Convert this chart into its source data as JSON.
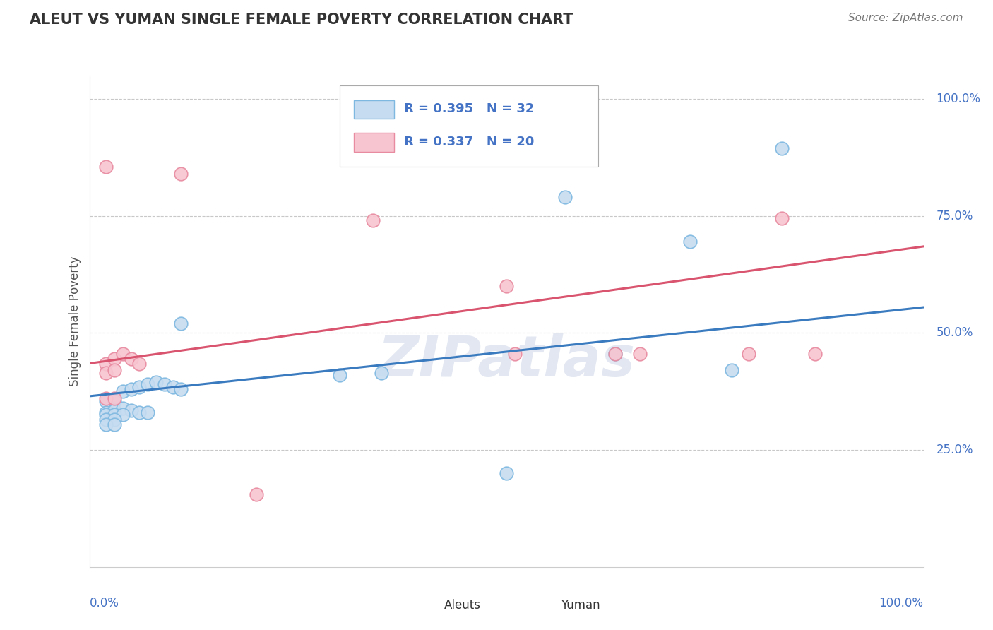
{
  "title": "ALEUT VS YUMAN SINGLE FEMALE POVERTY CORRELATION CHART",
  "source": "Source: ZipAtlas.com",
  "ylabel": "Single Female Poverty",
  "aleuts_R": 0.395,
  "aleuts_N": 32,
  "yuman_R": 0.337,
  "yuman_N": 20,
  "blue_face": "#c6dcf0",
  "blue_edge": "#7eb8e0",
  "pink_face": "#f7c5d0",
  "pink_edge": "#e88aa0",
  "blue_line": "#3a7abf",
  "pink_line": "#d9546e",
  "grid_color": "#c8c8c8",
  "text_color": "#555555",
  "axis_label_color": "#4472C4",
  "watermark_color": "#d0d8e8",
  "aleuts_x": [
    0.02,
    0.03,
    0.04,
    0.05,
    0.06,
    0.07,
    0.08,
    0.09,
    0.1,
    0.11,
    0.02,
    0.03,
    0.04,
    0.05,
    0.06,
    0.07,
    0.02,
    0.03,
    0.04,
    0.02,
    0.03,
    0.02,
    0.03,
    0.11,
    0.3,
    0.35,
    0.5,
    0.57,
    0.63,
    0.72,
    0.77,
    0.83
  ],
  "aleuts_y": [
    0.355,
    0.355,
    0.375,
    0.38,
    0.385,
    0.39,
    0.395,
    0.39,
    0.385,
    0.38,
    0.33,
    0.335,
    0.34,
    0.335,
    0.33,
    0.33,
    0.325,
    0.325,
    0.325,
    0.315,
    0.315,
    0.305,
    0.305,
    0.52,
    0.41,
    0.415,
    0.2,
    0.79,
    0.455,
    0.695,
    0.42,
    0.895
  ],
  "yuman_x": [
    0.02,
    0.03,
    0.04,
    0.05,
    0.06,
    0.02,
    0.03,
    0.02,
    0.03,
    0.02,
    0.11,
    0.2,
    0.34,
    0.5,
    0.51,
    0.63,
    0.66,
    0.79,
    0.83,
    0.87
  ],
  "yuman_y": [
    0.435,
    0.445,
    0.455,
    0.445,
    0.435,
    0.415,
    0.42,
    0.36,
    0.36,
    0.855,
    0.84,
    0.155,
    0.74,
    0.6,
    0.455,
    0.455,
    0.455,
    0.455,
    0.745,
    0.455
  ],
  "aleuts_line": [
    [
      0.0,
      1.0
    ],
    [
      0.365,
      0.555
    ]
  ],
  "yuman_line": [
    [
      0.0,
      1.0
    ],
    [
      0.435,
      0.685
    ]
  ],
  "xlim": [
    0.0,
    1.0
  ],
  "ylim": [
    0.0,
    1.05
  ],
  "grid_vals": [
    0.25,
    0.5,
    0.75,
    1.0
  ],
  "right_tick_labels": [
    "25.0%",
    "50.0%",
    "75.0%",
    "100.0%"
  ]
}
